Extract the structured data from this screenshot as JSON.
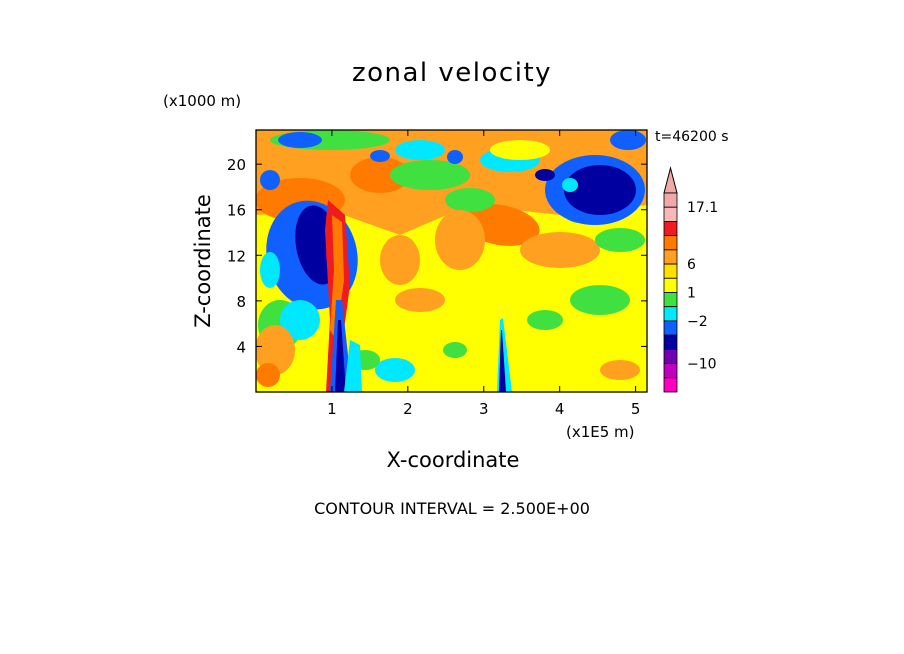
{
  "chart_data": {
    "type": "heatmap",
    "title": "zonal velocity",
    "xlabel": "X-coordinate",
    "ylabel": "Z-coordinate",
    "x_unit_label": "(x1E5 m)",
    "y_unit_label": "(x1000 m)",
    "time_label": "t=46200 s",
    "footer": "CONTOUR INTERVAL = 2.500E+00",
    "xlim": [
      0,
      5.15
    ],
    "ylim": [
      0,
      23
    ],
    "x_ticks": [
      1,
      2,
      3,
      4,
      5
    ],
    "x_tick_labels": [
      "1",
      "2",
      "3",
      "4",
      "5"
    ],
    "y_ticks": [
      4,
      8,
      12,
      16,
      20
    ],
    "y_tick_labels": [
      "4",
      "8",
      "12",
      "16",
      "20"
    ],
    "colorbar": {
      "label_values": [
        "17.1",
        "6",
        "1",
        "-2",
        "-10"
      ],
      "levels_top_to_bottom": [
        {
          "color": "#f0a8a8"
        },
        {
          "color": "#f8b8b8"
        },
        {
          "color": "#ee1c1c"
        },
        {
          "color": "#ff7a00"
        },
        {
          "color": "#ffa020"
        },
        {
          "color": "#ffe000"
        },
        {
          "color": "#ffff00"
        },
        {
          "color": "#40e040"
        },
        {
          "color": "#00e8ff"
        },
        {
          "color": "#1060ff"
        },
        {
          "color": "#0000a0"
        },
        {
          "color": "#7000b0"
        },
        {
          "color": "#c000c0"
        },
        {
          "color": "#ff00c0"
        }
      ]
    },
    "field_background": "#ffff00",
    "features": [
      {
        "kind": "negative_core",
        "x": 0.75,
        "z": 12.5,
        "color": "#0000a0"
      },
      {
        "kind": "positive_band",
        "x": 1.05,
        "z": 11.0,
        "color": "#ee1c1c"
      },
      {
        "kind": "negative_core",
        "x": 4.35,
        "z": 17.0,
        "color": "#0000a0"
      },
      {
        "kind": "negative_jet",
        "x": 3.2,
        "z": 3.0,
        "color": "#0000a0"
      },
      {
        "kind": "negative_jet",
        "x": 1.1,
        "z": 2.5,
        "color": "#0000a0"
      }
    ]
  }
}
